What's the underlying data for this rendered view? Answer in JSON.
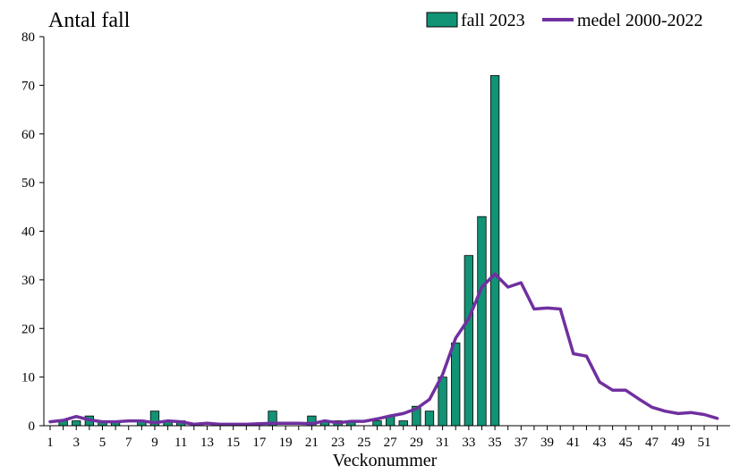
{
  "chart_data": {
    "type": "bar",
    "title": "Antal fall",
    "xlabel": "Veckonummer",
    "ylabel": "",
    "ylim": [
      0,
      80
    ],
    "yticks": [
      0,
      10,
      20,
      30,
      40,
      50,
      60,
      70,
      80
    ],
    "xlim": [
      1,
      52
    ],
    "xticks": [
      1,
      3,
      5,
      7,
      9,
      11,
      13,
      15,
      17,
      19,
      21,
      23,
      25,
      27,
      29,
      31,
      33,
      35,
      37,
      39,
      41,
      43,
      45,
      47,
      49,
      51
    ],
    "grid": false,
    "legend_position": "top-right",
    "colors": {
      "bars": "#119375",
      "bar_outline": "#000000",
      "line": "#7030a0",
      "axis": "#000000"
    },
    "bar_series": {
      "name": "fall 2023",
      "x": [
        1,
        2,
        3,
        4,
        5,
        6,
        7,
        8,
        9,
        10,
        11,
        12,
        13,
        14,
        15,
        16,
        17,
        18,
        19,
        20,
        21,
        22,
        23,
        24,
        25,
        26,
        27,
        28,
        29,
        30,
        31,
        32,
        33,
        34,
        35
      ],
      "values": [
        0,
        1,
        1,
        2,
        1,
        1,
        0,
        1,
        3,
        1,
        1,
        0,
        0,
        0,
        0,
        0,
        0,
        3,
        0,
        0,
        2,
        1,
        1,
        1,
        0,
        1,
        2,
        1,
        4,
        3,
        10,
        17,
        35,
        43,
        72
      ]
    },
    "line_series": {
      "name": "medel 2000-2022",
      "x": [
        1,
        2,
        3,
        4,
        5,
        6,
        7,
        8,
        9,
        10,
        11,
        12,
        13,
        14,
        15,
        16,
        17,
        18,
        19,
        20,
        21,
        22,
        23,
        24,
        25,
        26,
        27,
        28,
        29,
        30,
        31,
        32,
        33,
        34,
        35,
        36,
        37,
        38,
        39,
        40,
        41,
        42,
        43,
        44,
        45,
        46,
        47,
        48,
        49,
        50,
        51,
        52
      ],
      "values": [
        0.8,
        1.1,
        1.9,
        1.2,
        0.8,
        0.8,
        1.0,
        1.0,
        0.6,
        1.0,
        0.8,
        0.3,
        0.5,
        0.3,
        0.3,
        0.3,
        0.4,
        0.5,
        0.5,
        0.5,
        0.4,
        1.0,
        0.6,
        0.9,
        0.9,
        1.4,
        2.0,
        2.5,
        3.5,
        5.4,
        10.5,
        18.0,
        22.0,
        28.5,
        31.2,
        28.5,
        29.4,
        24.0,
        24.2,
        24.0,
        14.8,
        14.3,
        9.0,
        7.3,
        7.3,
        5.5,
        3.8,
        3.0,
        2.5,
        2.7,
        2.3,
        1.5
      ]
    }
  }
}
